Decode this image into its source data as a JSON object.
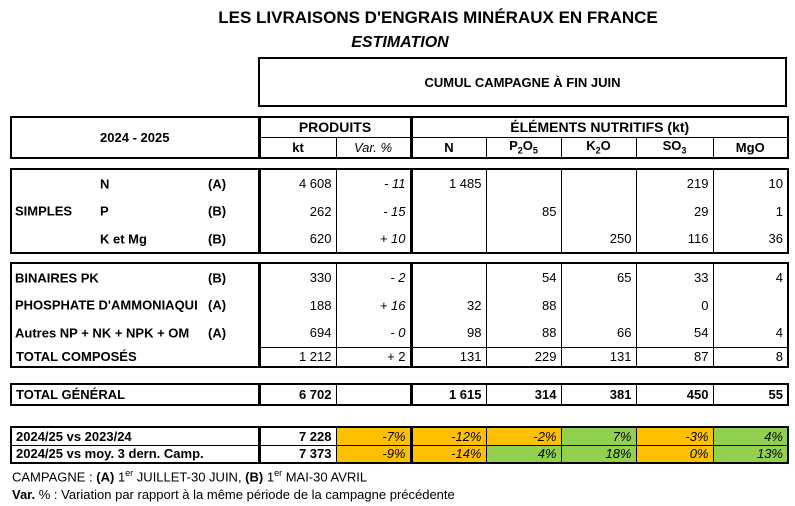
{
  "title": "LES LIVRAISONS D'ENGRAIS MINÉRAUX EN FRANCE",
  "subtitle": "ESTIMATION",
  "period_box": "CUMUL CAMPAGNE À FIN JUIN",
  "header": {
    "season": "2024 - 2025",
    "produits": "PRODUITS",
    "kt": "kt",
    "var": "Var. %",
    "elements": "ÉLÉMENTS NUTRITIFS (kt)",
    "n": "N",
    "p_base": "P",
    "p_sub1": "2",
    "p_o": "O",
    "p_sub2": "5",
    "k_base": "K",
    "k_sub": "2",
    "k_o": "O",
    "so_base": "SO",
    "so_sub": "3",
    "mgo": "MgO"
  },
  "simples": {
    "group": "SIMPLES",
    "rows": [
      {
        "name": "N",
        "camp": "(A)",
        "kt": "4 608",
        "var": "- 11",
        "n": "1 485",
        "p": "",
        "k": "",
        "so3": "219",
        "mgo": "10"
      },
      {
        "name": "P",
        "camp": "(B)",
        "kt": "262",
        "var": "- 15",
        "n": "",
        "p": "85",
        "k": "",
        "so3": "29",
        "mgo": "1"
      },
      {
        "name": "K et Mg",
        "camp": "(B)",
        "kt": "620",
        "var": "+ 10",
        "n": "",
        "p": "",
        "k": "250",
        "so3": "116",
        "mgo": "36"
      }
    ]
  },
  "composes": {
    "rows": [
      {
        "name": "BINAIRES PK",
        "camp": "(B)",
        "kt": "330",
        "var": "- 2",
        "n": "",
        "p": "54",
        "k": "65",
        "so3": "33",
        "mgo": "4"
      },
      {
        "name": "PHOSPHATE D'AMMONIAQUI",
        "camp": "(A)",
        "kt": "188",
        "var": "+ 16",
        "n": "32",
        "p": "88",
        "k": "",
        "so3": "0",
        "mgo": ""
      },
      {
        "name": "Autres NP + NK + NPK + OM",
        "camp": "(A)",
        "kt": "694",
        "var": "- 0",
        "n": "98",
        "p": "88",
        "k": "66",
        "so3": "54",
        "mgo": "4"
      }
    ],
    "total": {
      "name": "TOTAL COMPOSÉS",
      "kt": "1 212",
      "var": "+ 2",
      "n": "131",
      "p": "229",
      "k": "131",
      "so3": "87",
      "mgo": "8"
    }
  },
  "total_general": {
    "name": "TOTAL GÉNÉRAL",
    "kt": "6 702",
    "var": "",
    "n": "1 615",
    "p": "314",
    "k": "381",
    "so3": "450",
    "mgo": "55"
  },
  "comparisons": [
    {
      "name": "2024/25 vs 2023/24",
      "kt": "7 228",
      "var": "-7%",
      "n": "-12%",
      "p": "-2%",
      "k": "7%",
      "so3": "-3%",
      "mgo": "4%"
    },
    {
      "name": "2024/25 vs moy. 3 dern. Camp.",
      "kt": "7 373",
      "var": "-9%",
      "n": "-14%",
      "p": "4%",
      "k": "18%",
      "so3": "0%",
      "mgo": "13%"
    }
  ],
  "colors": {
    "negative": "#ffc000",
    "positive": "#92d050"
  },
  "footer": {
    "line1_a": "CAMPAGNE : ",
    "a": "(A)",
    "l1": " 1",
    "er1": "er",
    "l2": " JUILLET-30 JUIN, ",
    "b": "(B)",
    "l3": " 1",
    "er2": "er",
    "l4": " MAI-30 AVRIL",
    "line2_b": "Var.",
    "line2": " % : Variation par rapport à la même période de la campagne précédente"
  }
}
